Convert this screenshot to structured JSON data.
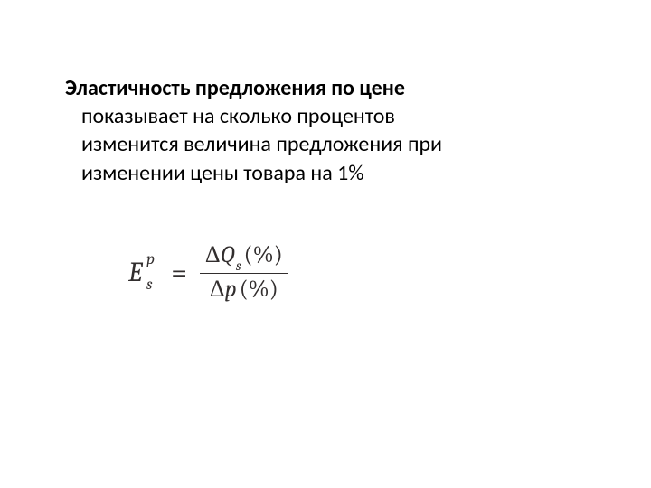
{
  "text": {
    "title_bold": "Эластичность предложения по цене",
    "line2": "показывает на сколько процентов",
    "line3": "изменится величина предложения при",
    "line4": "изменении цены товара на 1%"
  },
  "formula": {
    "lhs_base": "E",
    "lhs_sub": "s",
    "lhs_sup": "p",
    "equals": "=",
    "numerator_delta": "Δ",
    "numerator_var": "Q",
    "numerator_sub": "s",
    "numerator_paren": "(%)",
    "denominator_delta": "Δ",
    "denominator_var": "p",
    "denominator_paren": "(%)"
  },
  "style": {
    "background_color": "#ffffff",
    "text_color": "#000000",
    "formula_color": "#322e2e",
    "body_fontsize": 24,
    "formula_fontsize": 28,
    "bold_weight": 700
  }
}
